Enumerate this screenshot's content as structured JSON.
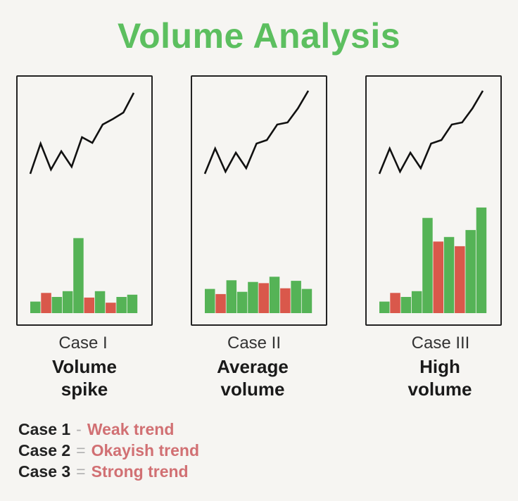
{
  "title": "Volume Analysis",
  "colors": {
    "title": "#5cbf5f",
    "up_bar": "#55b356",
    "down_bar": "#d9584b",
    "price_line": "#111111",
    "trend_text": "#d17073"
  },
  "chart_data": [
    {
      "type": "bar",
      "case_label": "Case I",
      "description_line1": "Volume",
      "description_line2": "spike",
      "price_line": [
        0.12,
        0.55,
        0.18,
        0.44,
        0.22,
        0.64,
        0.56,
        0.82,
        0.9,
        0.99,
        1.27
      ],
      "bars": [
        {
          "value": 2,
          "color": "up"
        },
        {
          "value": 3.5,
          "color": "down"
        },
        {
          "value": 2.8,
          "color": "up"
        },
        {
          "value": 3.8,
          "color": "up"
        },
        {
          "value": 13,
          "color": "up"
        },
        {
          "value": 2.7,
          "color": "down"
        },
        {
          "value": 3.8,
          "color": "up"
        },
        {
          "value": 1.8,
          "color": "down"
        },
        {
          "value": 2.8,
          "color": "up"
        },
        {
          "value": 3.2,
          "color": "up"
        }
      ],
      "ylim": [
        0,
        18
      ]
    },
    {
      "type": "bar",
      "case_label": "Case II",
      "description_line1": "Average",
      "description_line2": "volume",
      "price_line": [
        0.12,
        0.48,
        0.15,
        0.42,
        0.2,
        0.55,
        0.6,
        0.82,
        0.85,
        1.05,
        1.3
      ],
      "bars": [
        {
          "value": 4.2,
          "color": "up"
        },
        {
          "value": 3.3,
          "color": "down"
        },
        {
          "value": 5.7,
          "color": "up"
        },
        {
          "value": 3.7,
          "color": "up"
        },
        {
          "value": 5.4,
          "color": "up"
        },
        {
          "value": 5.2,
          "color": "down"
        },
        {
          "value": 6.3,
          "color": "up"
        },
        {
          "value": 4.3,
          "color": "down"
        },
        {
          "value": 5.6,
          "color": "up"
        },
        {
          "value": 4.2,
          "color": "up"
        }
      ],
      "ylim": [
        0,
        18
      ]
    },
    {
      "type": "bar",
      "case_label": "Case III",
      "description_line1": "High",
      "description_line2": "volume",
      "price_line": [
        0.12,
        0.48,
        0.15,
        0.42,
        0.2,
        0.55,
        0.6,
        0.82,
        0.85,
        1.05,
        1.3
      ],
      "bars": [
        {
          "value": 2,
          "color": "up"
        },
        {
          "value": 3.5,
          "color": "down"
        },
        {
          "value": 2.8,
          "color": "up"
        },
        {
          "value": 3.8,
          "color": "up"
        },
        {
          "value": 16.5,
          "color": "up"
        },
        {
          "value": 12.4,
          "color": "down"
        },
        {
          "value": 13.2,
          "color": "up"
        },
        {
          "value": 11.6,
          "color": "down"
        },
        {
          "value": 14.4,
          "color": "up"
        },
        {
          "value": 18.3,
          "color": "up"
        }
      ],
      "ylim": [
        0,
        18
      ]
    }
  ],
  "legend": [
    {
      "case": "Case 1",
      "separator": "-",
      "trend": "Weak trend"
    },
    {
      "case": "Case 2",
      "separator": "=",
      "trend": "Okayish trend"
    },
    {
      "case": "Case 3",
      "separator": "=",
      "trend": "Strong trend"
    }
  ]
}
